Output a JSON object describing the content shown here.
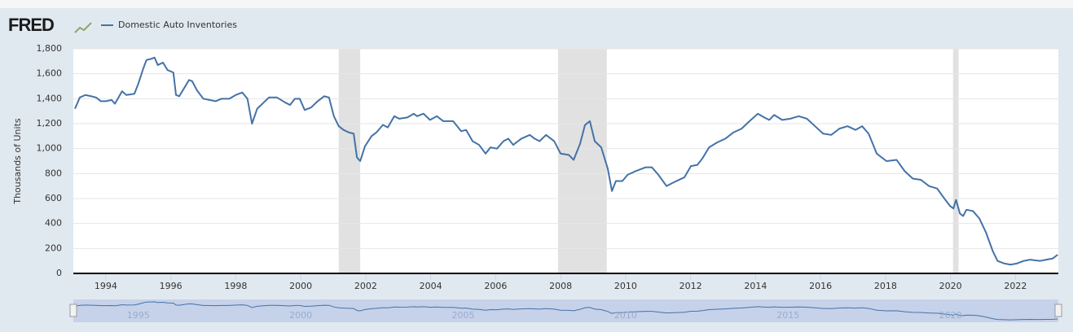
{
  "logo": "FRED",
  "chart_data": {
    "type": "line",
    "ylabel": "Thousands of Units",
    "x": [
      1993.05,
      1993.2,
      1993.37,
      1993.55,
      1993.7,
      1993.85,
      1994.0,
      1994.18,
      1994.28,
      1994.5,
      1994.63,
      1994.88,
      1995.0,
      1995.15,
      1995.25,
      1995.4,
      1995.5,
      1995.6,
      1995.76,
      1995.9,
      1996.08,
      1996.16,
      1996.26,
      1996.4,
      1996.56,
      1996.66,
      1996.8,
      1997.0,
      1997.2,
      1997.38,
      1997.56,
      1997.8,
      1998.0,
      1998.2,
      1998.36,
      1998.5,
      1998.66,
      1998.82,
      1999.02,
      1999.27,
      1999.52,
      1999.67,
      1999.82,
      1999.97,
      2000.12,
      2000.32,
      2000.52,
      2000.72,
      2000.87,
      2001.02,
      2001.17,
      2001.32,
      2001.48,
      2001.63,
      2001.73,
      2001.83,
      2001.98,
      2002.18,
      2002.33,
      2002.53,
      2002.68,
      2002.88,
      2003.03,
      2003.28,
      2003.48,
      2003.58,
      2003.78,
      2003.98,
      2004.19,
      2004.39,
      2004.69,
      2004.94,
      2005.09,
      2005.29,
      2005.49,
      2005.69,
      2005.84,
      2006.04,
      2006.24,
      2006.39,
      2006.54,
      2006.79,
      2007.05,
      2007.2,
      2007.35,
      2007.55,
      2007.8,
      2008.0,
      2008.25,
      2008.4,
      2008.6,
      2008.75,
      2008.9,
      2009.05,
      2009.25,
      2009.45,
      2009.58,
      2009.7,
      2009.9,
      2010.06,
      2010.31,
      2010.61,
      2010.81,
      2011.01,
      2011.26,
      2011.56,
      2011.81,
      2012.01,
      2012.21,
      2012.36,
      2012.57,
      2012.82,
      2013.07,
      2013.32,
      2013.57,
      2013.77,
      2014.07,
      2014.27,
      2014.42,
      2014.57,
      2014.82,
      2015.07,
      2015.33,
      2015.58,
      2015.83,
      2016.08,
      2016.33,
      2016.58,
      2016.83,
      2017.08,
      2017.28,
      2017.48,
      2017.73,
      2018.03,
      2018.34,
      2018.59,
      2018.84,
      2019.09,
      2019.34,
      2019.59,
      2019.84,
      2019.99,
      2020.09,
      2020.17,
      2020.29,
      2020.39,
      2020.49,
      2020.69,
      2020.89,
      2021.09,
      2021.3,
      2021.45,
      2021.65,
      2021.85,
      2022.05,
      2022.25,
      2022.45,
      2022.75,
      2022.95,
      2023.15,
      2023.3
    ],
    "series": [
      {
        "name": "Domestic Auto Inventories",
        "color": "#4572a7",
        "values": [
          1320,
          1410,
          1430,
          1420,
          1410,
          1380,
          1380,
          1390,
          1360,
          1460,
          1430,
          1440,
          1520,
          1640,
          1710,
          1720,
          1730,
          1670,
          1690,
          1630,
          1610,
          1430,
          1420,
          1480,
          1550,
          1540,
          1470,
          1400,
          1390,
          1380,
          1400,
          1400,
          1430,
          1450,
          1400,
          1200,
          1320,
          1360,
          1410,
          1410,
          1370,
          1350,
          1400,
          1400,
          1310,
          1330,
          1380,
          1420,
          1410,
          1260,
          1180,
          1150,
          1130,
          1120,
          930,
          900,
          1020,
          1100,
          1130,
          1190,
          1170,
          1260,
          1240,
          1250,
          1280,
          1260,
          1280,
          1230,
          1260,
          1220,
          1220,
          1140,
          1150,
          1060,
          1030,
          960,
          1010,
          1000,
          1060,
          1080,
          1030,
          1080,
          1110,
          1080,
          1060,
          1110,
          1060,
          960,
          950,
          910,
          1040,
          1190,
          1220,
          1060,
          1010,
          840,
          660,
          740,
          740,
          790,
          820,
          850,
          850,
          790,
          700,
          740,
          770,
          860,
          870,
          920,
          1010,
          1050,
          1080,
          1130,
          1160,
          1210,
          1280,
          1250,
          1230,
          1270,
          1230,
          1240,
          1260,
          1240,
          1180,
          1120,
          1110,
          1160,
          1180,
          1150,
          1180,
          1120,
          960,
          900,
          910,
          820,
          760,
          750,
          700,
          680,
          590,
          540,
          520,
          590,
          480,
          460,
          510,
          500,
          440,
          330,
          180,
          100,
          80,
          70,
          80,
          100,
          110,
          100,
          110,
          120,
          150
        ]
      }
    ],
    "xlim": [
      1993,
      2023.32
    ],
    "xticks": [
      1994,
      1996,
      1998,
      2000,
      2002,
      2004,
      2006,
      2008,
      2010,
      2012,
      2014,
      2016,
      2018,
      2020,
      2022
    ],
    "ylim": [
      0,
      1800
    ],
    "yticks": [
      0,
      200,
      400,
      600,
      800,
      {
        "value": 1000,
        "label": "1,000"
      },
      {
        "value": 1200,
        "label": "1,200"
      },
      {
        "value": 1400,
        "label": "1,400"
      },
      {
        "value": 1600,
        "label": "1,600"
      },
      {
        "value": 1800,
        "label": "1,800"
      }
    ],
    "grid": true,
    "recessions": [
      [
        2001.17,
        2001.83
      ],
      [
        2007.92,
        2009.42
      ],
      [
        2020.08,
        2020.25
      ]
    ],
    "navigator_ticks": [
      1995,
      2000,
      2005,
      2010,
      2015,
      2020
    ]
  }
}
